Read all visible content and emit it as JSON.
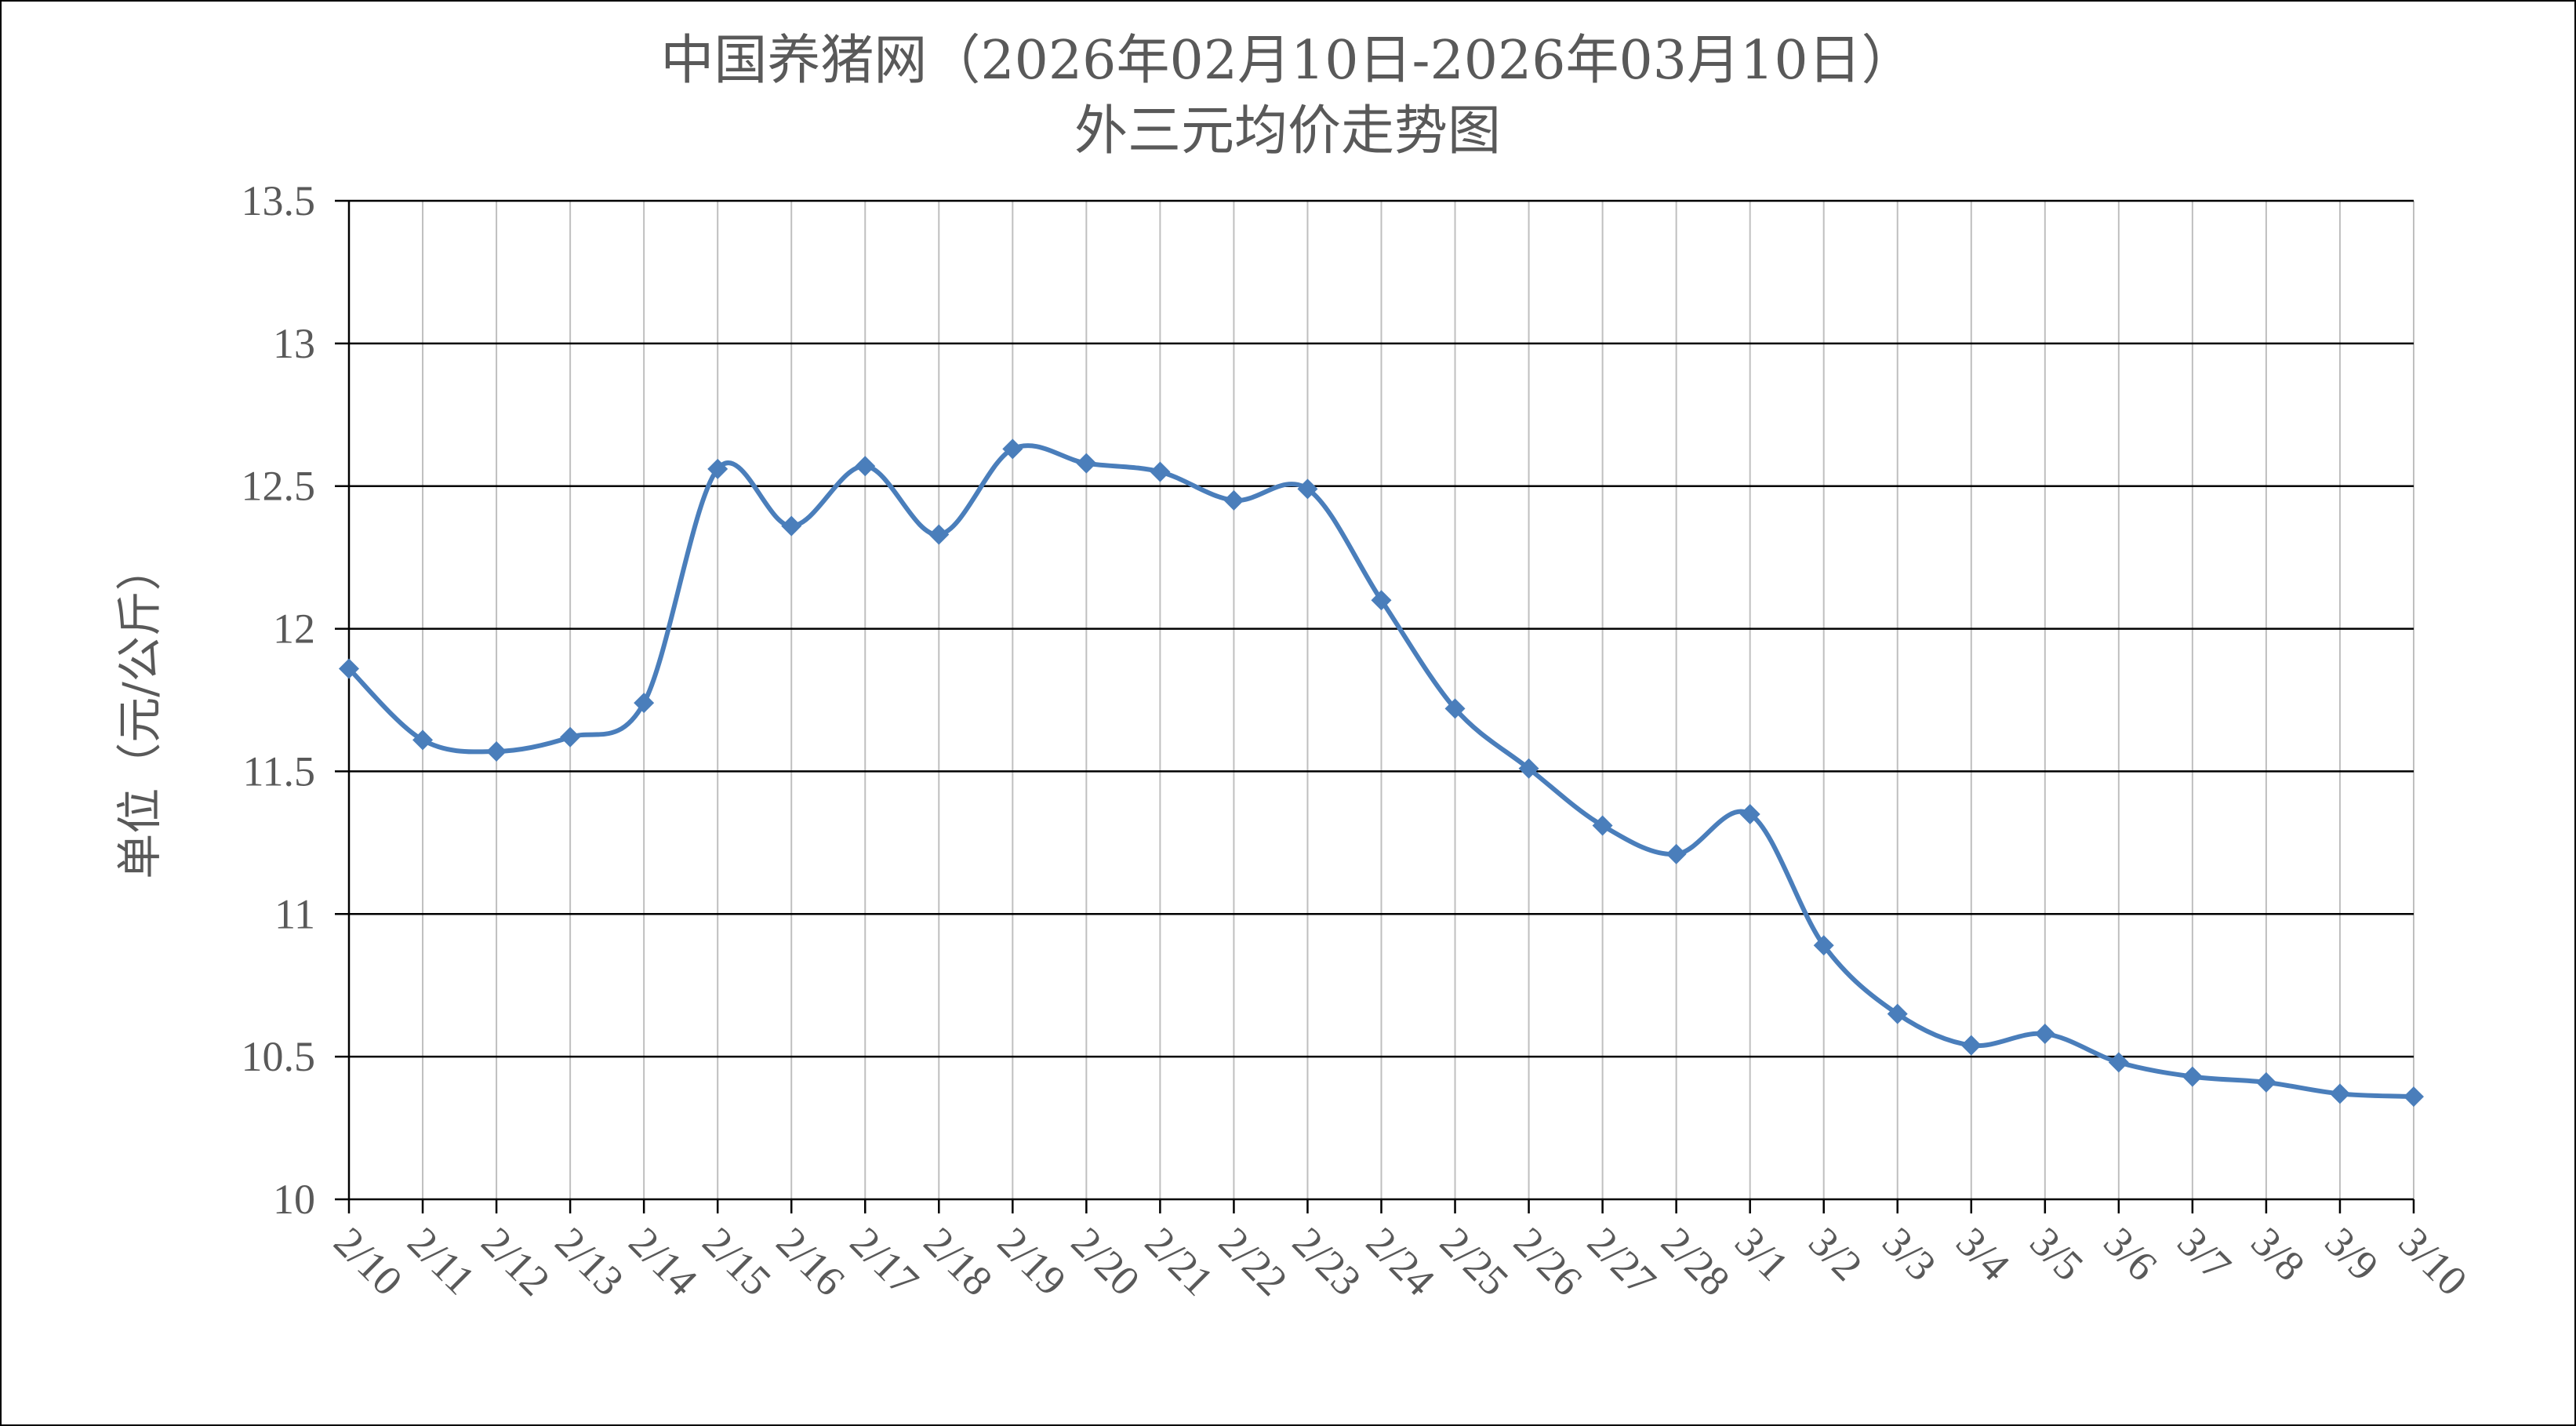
{
  "chart_data": {
    "type": "line",
    "title": "中国养猪网（2026年02月10日-2026年03月10日）",
    "subtitle": "外三元均价走势图",
    "ylabel": "单位（元/公斤）",
    "xlabel": "",
    "ylim": [
      10,
      13.5
    ],
    "y_ticks": [
      "10",
      "10.5",
      "11",
      "11.5",
      "12",
      "12.5",
      "13",
      "13.5"
    ],
    "categories": [
      "2/10",
      "2/11",
      "2/12",
      "2/13",
      "2/14",
      "2/15",
      "2/16",
      "2/17",
      "2/18",
      "2/19",
      "2/20",
      "2/21",
      "2/22",
      "2/23",
      "2/24",
      "2/25",
      "2/26",
      "2/27",
      "2/28",
      "3/1",
      "3/2",
      "3/3",
      "3/4",
      "3/5",
      "3/6",
      "3/7",
      "3/8",
      "3/9",
      "3/10"
    ],
    "series": [
      {
        "values": [
          11.86,
          11.61,
          11.57,
          11.62,
          11.74,
          12.56,
          12.36,
          12.57,
          12.33,
          12.63,
          12.58,
          12.55,
          12.45,
          12.49,
          12.1,
          11.72,
          11.51,
          11.31,
          11.21,
          11.35,
          10.89,
          10.65,
          10.54,
          10.58,
          10.48,
          10.43,
          10.41,
          10.37,
          10.36
        ],
        "color": "#4a7ebb",
        "marker": "diamond",
        "smooth": true
      }
    ],
    "grid": {
      "horizontal": true,
      "vertical": true
    },
    "legend": "none"
  }
}
